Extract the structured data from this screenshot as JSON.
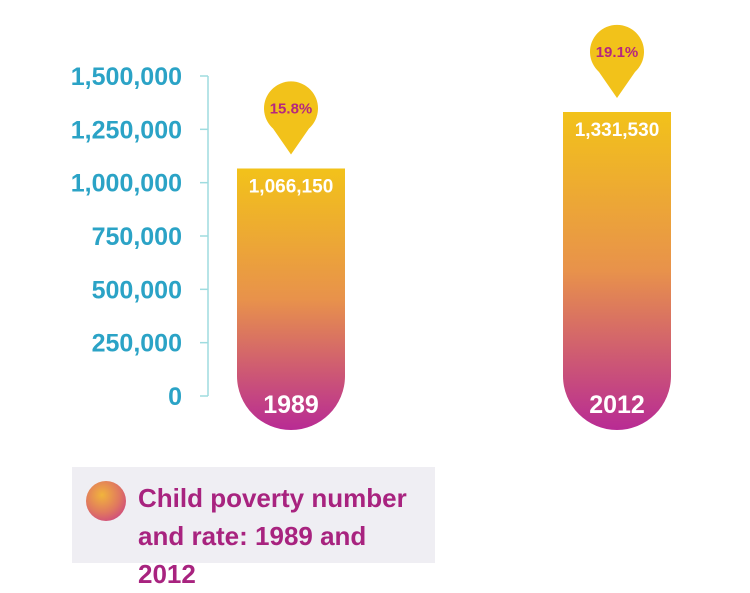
{
  "colors": {
    "axis_text": "#2ba3c6",
    "axis_line": "#9fdcdf",
    "bar_top": "#f2c21a",
    "bar_mid": "#e8924b",
    "bar_bottom": "#b82b94",
    "marker": "#f2c21a",
    "marker_text": "#b5277f",
    "legend_bg": "#efeef3",
    "legend_text": "#a8237f"
  },
  "legend": {
    "title": "Child poverty number and rate: 1989 and 2012"
  },
  "chart_data": {
    "type": "bar",
    "title": "Child poverty number and rate: 1989 and 2012",
    "categories": [
      "1989",
      "2012"
    ],
    "values": [
      1066150,
      1331530
    ],
    "value_labels": [
      "1,066,150",
      "1,331,530"
    ],
    "rates": [
      "15.8%",
      "19.1%"
    ],
    "ylim": [
      0,
      1500000
    ],
    "yticks": [
      0,
      250000,
      500000,
      750000,
      1000000,
      1250000,
      1500000
    ],
    "ytick_labels": [
      "0",
      "250,000",
      "500,000",
      "750,000",
      "1,000,000",
      "1,250,000",
      "1,500,000"
    ],
    "grid": false,
    "legend_position": "bottom-left"
  }
}
